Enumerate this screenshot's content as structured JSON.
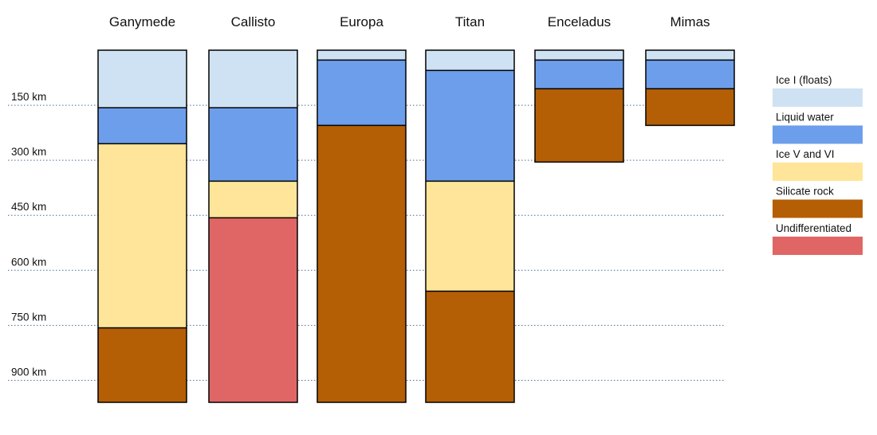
{
  "chart_data": {
    "type": "bar",
    "subtype": "stacked-depth-columns",
    "categories": [
      "Ganymede",
      "Callisto",
      "Europa",
      "Titan",
      "Enceladus",
      "Mimas"
    ],
    "y_unit": "km",
    "y_ticks": [
      150,
      300,
      450,
      600,
      750,
      900
    ],
    "y_tick_labels": [
      "150 km",
      "300 km",
      "450 km",
      "600 km",
      "750 km",
      "900 km"
    ],
    "ylim": [
      0,
      960
    ],
    "grid": "horizontal dotted",
    "legend_placement": "right",
    "layers": [
      {
        "name": "Ice I (floats)",
        "color": "#cfe2f3"
      },
      {
        "name": "Liquid water",
        "color": "#6d9eeb"
      },
      {
        "name": "Ice V and VI",
        "color": "#ffe599"
      },
      {
        "name": "Silicate rock",
        "color": "#b45f06"
      },
      {
        "name": "Undifferentiated",
        "color": "#e06666"
      }
    ],
    "columns": [
      {
        "moon": "Ganymede",
        "total_depth": 960,
        "segments": [
          {
            "layer": "Ice I (floats)",
            "from": 0,
            "to": 157
          },
          {
            "layer": "Liquid water",
            "from": 157,
            "to": 255
          },
          {
            "layer": "Ice V and VI",
            "from": 255,
            "to": 757
          },
          {
            "layer": "Silicate rock",
            "from": 757,
            "to": 960
          }
        ]
      },
      {
        "moon": "Callisto",
        "total_depth": 960,
        "segments": [
          {
            "layer": "Ice I (floats)",
            "from": 0,
            "to": 157
          },
          {
            "layer": "Liquid water",
            "from": 157,
            "to": 357
          },
          {
            "layer": "Ice V and VI",
            "from": 357,
            "to": 457
          },
          {
            "layer": "Undifferentiated",
            "from": 457,
            "to": 960
          }
        ]
      },
      {
        "moon": "Europa",
        "total_depth": 960,
        "segments": [
          {
            "layer": "Ice I (floats)",
            "from": 0,
            "to": 27
          },
          {
            "layer": "Liquid water",
            "from": 27,
            "to": 205
          },
          {
            "layer": "Silicate rock",
            "from": 205,
            "to": 960
          }
        ]
      },
      {
        "moon": "Titan",
        "total_depth": 960,
        "segments": [
          {
            "layer": "Ice I (floats)",
            "from": 0,
            "to": 55
          },
          {
            "layer": "Liquid water",
            "from": 55,
            "to": 357
          },
          {
            "layer": "Ice V and VI",
            "from": 357,
            "to": 657
          },
          {
            "layer": "Silicate rock",
            "from": 657,
            "to": 960
          }
        ]
      },
      {
        "moon": "Enceladus",
        "total_depth": 305,
        "segments": [
          {
            "layer": "Ice I (floats)",
            "from": 0,
            "to": 27
          },
          {
            "layer": "Liquid water",
            "from": 27,
            "to": 105
          },
          {
            "layer": "Silicate rock",
            "from": 105,
            "to": 305
          }
        ]
      },
      {
        "moon": "Mimas",
        "total_depth": 205,
        "segments": [
          {
            "layer": "Ice I (floats)",
            "from": 0,
            "to": 27
          },
          {
            "layer": "Liquid water",
            "from": 27,
            "to": 105
          },
          {
            "layer": "Silicate rock",
            "from": 105,
            "to": 205
          }
        ]
      }
    ]
  }
}
